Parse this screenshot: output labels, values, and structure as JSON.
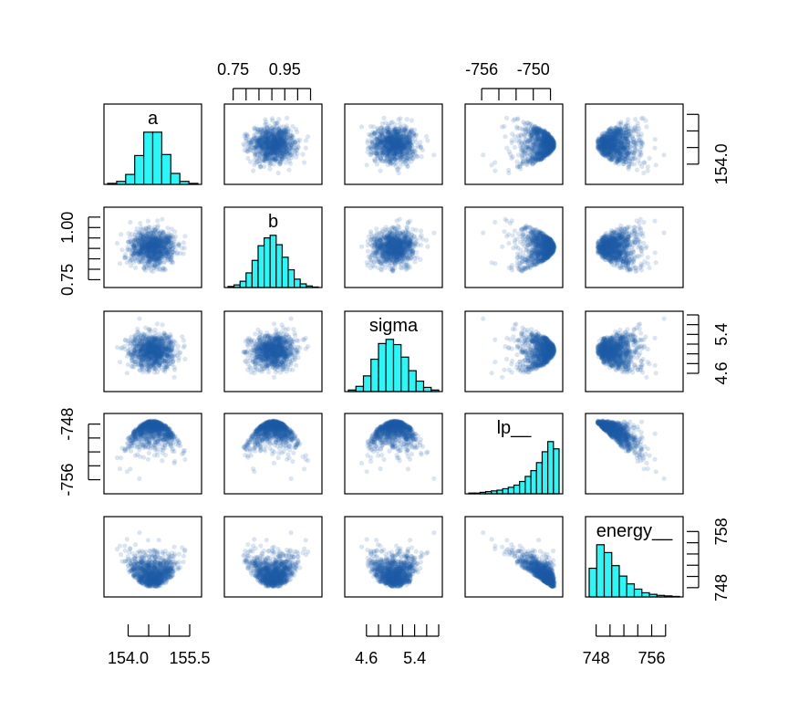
{
  "chart_data": {
    "type": "scatter-matrix",
    "variables": [
      "a",
      "b",
      "sigma",
      "lp__",
      "energy__"
    ],
    "point_color": "#1f5fa8",
    "hist_color": "#2af7f7",
    "axes": {
      "a": {
        "range": [
          153.5,
          155.7
        ],
        "ticks": [
          154.0,
          154.5,
          155.0,
          155.5
        ],
        "tick_labels": [
          "154.0",
          "155.5"
        ],
        "side": "bottom",
        "mean": 154.6,
        "sd": 0.27
      },
      "b": {
        "range": [
          0.73,
          1.08
        ],
        "ticks": [
          0.75,
          0.8,
          0.85,
          0.9,
          0.95,
          1.0,
          1.05
        ],
        "tick_labels": [
          "0.75",
          "0.95"
        ],
        "left_tick_labels": [
          "0.75",
          "1.00"
        ],
        "side": "top",
        "mean": 0.905,
        "sd": 0.042
      },
      "sigma": {
        "range": [
          4.3,
          5.8
        ],
        "ticks": [
          4.6,
          4.8,
          5.0,
          5.2,
          5.4,
          5.6,
          5.8
        ],
        "tick_labels": [
          "4.6",
          "5.4"
        ],
        "side": "bottom",
        "mean": 5.07,
        "sd": 0.19
      },
      "lp__": {
        "range": [
          -757.5,
          -747.0
        ],
        "ticks": [
          -756,
          -754,
          -752,
          -750,
          -748
        ],
        "tick_labels": [
          "-756",
          "-750"
        ],
        "left_tick_labels": [
          "-748",
          "-756"
        ],
        "side": "top"
      },
      "energy__": {
        "range": [
          747.0,
          760.0
        ],
        "ticks": [
          748,
          750,
          752,
          754,
          756,
          758
        ],
        "tick_labels": [
          "748",
          "756"
        ],
        "right_tick_labels": [
          "748",
          "758"
        ],
        "side": "bottom"
      }
    },
    "histograms": {
      "a": {
        "counts": [
          2,
          6,
          20,
          58,
          105,
          105,
          60,
          22,
          6,
          2
        ]
      },
      "b": {
        "counts": [
          2,
          5,
          12,
          28,
          52,
          80,
          95,
          100,
          82,
          58,
          34,
          16,
          7,
          3,
          1
        ]
      },
      "sigma": {
        "counts": [
          3,
          10,
          30,
          62,
          92,
          100,
          90,
          66,
          40,
          20,
          8,
          3
        ]
      },
      "lp__": {
        "counts": [
          1,
          1,
          2,
          3,
          4,
          5,
          7,
          9,
          12,
          17,
          24,
          32,
          43,
          58,
          72,
          62
        ]
      },
      "energy__": {
        "counts": [
          55,
          100,
          85,
          60,
          40,
          25,
          15,
          8,
          5,
          3,
          2,
          1
        ]
      }
    }
  }
}
